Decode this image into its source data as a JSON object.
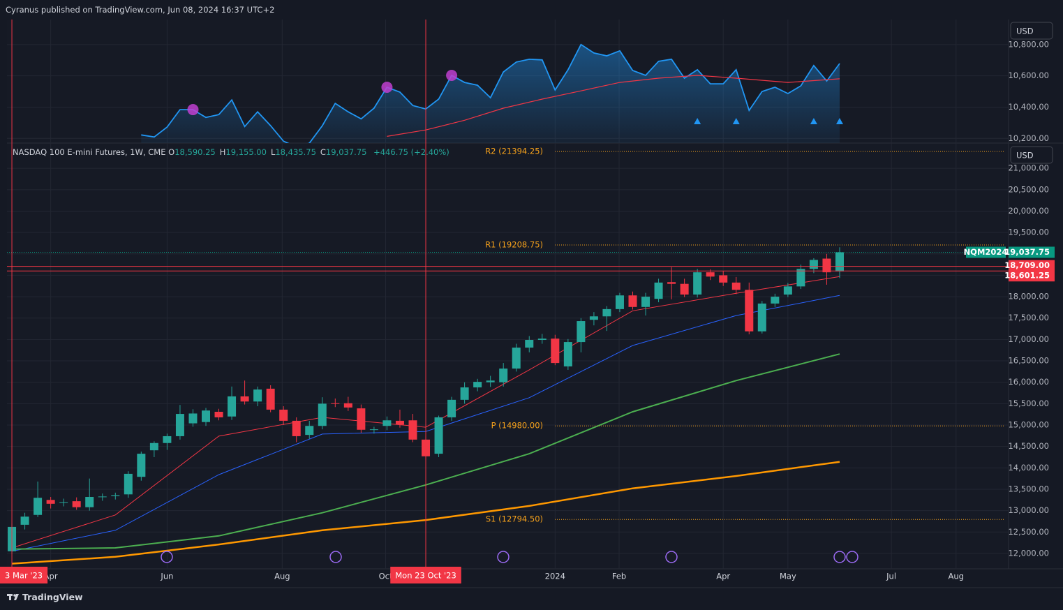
{
  "header": "Cyranus published on TradingView.com, Jun 08, 2024 16:37 UTC+2",
  "footer_brand": "TradingView",
  "chart_data": [
    {
      "type": "oscillator",
      "currency": "USD",
      "xlim": [
        -0.38,
        77.06
      ],
      "ylim": [
        10170,
        10960
      ],
      "yticks": [
        {
          "value": 10200,
          "label": "10,200.00"
        },
        {
          "value": 10400,
          "label": "10,400.00"
        },
        {
          "value": 10600,
          "label": "10,600.00"
        },
        {
          "value": 10800,
          "label": "10,800.00"
        }
      ],
      "series": [
        {
          "color": "#2196f3",
          "x": [
            10,
            11,
            12,
            13,
            14,
            15,
            16,
            17,
            18,
            19,
            20,
            21,
            22,
            23,
            24,
            25,
            26,
            27,
            28,
            29,
            30,
            31,
            32,
            33,
            34,
            35,
            36,
            37,
            38,
            39,
            40,
            41,
            42,
            43,
            44,
            45,
            46,
            47,
            48,
            49,
            50,
            51,
            52,
            53,
            54,
            55,
            56,
            57,
            58,
            59,
            60,
            61,
            62,
            63,
            64
          ],
          "values": [
            10222,
            10209,
            10272,
            10384,
            10384,
            10334,
            10352,
            10446,
            10276,
            10370,
            10281,
            10182,
            10146,
            10169,
            10281,
            10424,
            10370,
            10325,
            10393,
            10527,
            10496,
            10410,
            10388,
            10451,
            10603,
            10558,
            10540,
            10460,
            10625,
            10688,
            10706,
            10702,
            10509,
            10639,
            10800,
            10746,
            10728,
            10760,
            10634,
            10603,
            10693,
            10706,
            10585,
            10639,
            10549,
            10549,
            10639,
            10379,
            10500,
            10527,
            10487,
            10536,
            10666,
            10567,
            10679
          ]
        },
        {
          "color": "#f23645",
          "x": [
            29,
            32,
            35,
            38,
            41,
            44,
            47,
            50,
            53,
            56,
            60,
            64
          ],
          "values": [
            10213,
            10254,
            10316,
            10393,
            10451,
            10504,
            10558,
            10585,
            10603,
            10585,
            10558,
            10581
          ]
        }
      ],
      "markers": {
        "circles": [
          14,
          29,
          34
        ],
        "circle_color": "#c040d0",
        "triangles": [
          53,
          56,
          62,
          64
        ],
        "triangle_color": "#2196f3"
      }
    },
    {
      "type": "candlestick",
      "instrument": "NASDAQ 100 E-mini Futures, 1W, CME",
      "legend": [
        {
          "key": "O",
          "value": "18,590.25"
        },
        {
          "key": "H",
          "value": "19,155.00"
        },
        {
          "key": "L",
          "value": "18,435.75"
        },
        {
          "key": "C",
          "value": "19,037.75"
        }
      ],
      "change": "+446.75 (+2.40%)",
      "currency": "USD",
      "xlim": [
        -0.38,
        77.06
      ],
      "xticks": [
        {
          "value": 3.0,
          "label": "Apr"
        },
        {
          "value": 12.0,
          "label": "Jun"
        },
        {
          "value": 20.9,
          "label": "Aug"
        },
        {
          "value": 28.9,
          "label": "Oct"
        },
        {
          "value": 42.0,
          "label": "2024"
        },
        {
          "value": 46.95,
          "label": "Feb"
        },
        {
          "value": 55.0,
          "label": "Apr"
        },
        {
          "value": 60.0,
          "label": "May"
        },
        {
          "value": 68.0,
          "label": "Jul"
        },
        {
          "value": 73.0,
          "label": "Aug"
        }
      ],
      "ylim": [
        11640,
        21590
      ],
      "yticks": [
        {
          "value": 12000,
          "label": "12,000.00"
        },
        {
          "value": 12500,
          "label": "12,500.00"
        },
        {
          "value": 13000,
          "label": "13,000.00"
        },
        {
          "value": 13500,
          "label": "13,500.00"
        },
        {
          "value": 14000,
          "label": "14,000.00"
        },
        {
          "value": 14500,
          "label": "14,500.00"
        },
        {
          "value": 15000,
          "label": "15,000.00"
        },
        {
          "value": 15500,
          "label": "15,500.00"
        },
        {
          "value": 16000,
          "label": "16,000.00"
        },
        {
          "value": 16500,
          "label": "16,500.00"
        },
        {
          "value": 17000,
          "label": "17,000.00"
        },
        {
          "value": 17500,
          "label": "17,500.00"
        },
        {
          "value": 18000,
          "label": "18,000.00"
        },
        {
          "value": 18500,
          "label": "18,500.00"
        },
        {
          "value": 19000,
          "label": "19,000.00"
        },
        {
          "value": 19500,
          "label": "19,500.00"
        },
        {
          "value": 20000,
          "label": "20,000.00"
        },
        {
          "value": 20500,
          "label": "20,500.00"
        },
        {
          "value": 21000,
          "label": "21,000.00"
        }
      ],
      "colors": {
        "up": "#26a69a",
        "down": "#f23645"
      },
      "open": [
        12050,
        12670,
        12900,
        13250,
        13190,
        13220,
        13080,
        13320,
        13340,
        13380,
        13790,
        14410,
        14580,
        14740,
        15040,
        15070,
        15310,
        15200,
        15670,
        15550,
        15850,
        15360,
        15100,
        14770,
        14980,
        15510,
        15510,
        15390,
        14890,
        14980,
        15100,
        15110,
        14660,
        14330,
        15180,
        15590,
        15880,
        16000,
        16000,
        16320,
        16810,
        16990,
        17020,
        16370,
        16940,
        17460,
        17540,
        17710,
        18030,
        17760,
        17950,
        18340,
        18300,
        18050,
        18570,
        18500,
        18330,
        18160,
        17190,
        17840,
        18050,
        18240,
        18650,
        18890,
        18590.25
      ],
      "high": [
        12700,
        12950,
        13680,
        13320,
        13280,
        13310,
        13750,
        13400,
        13420,
        13920,
        14380,
        14620,
        14800,
        15470,
        15370,
        15400,
        15380,
        15900,
        16040,
        15900,
        15930,
        15440,
        15180,
        15100,
        15650,
        15620,
        15660,
        15480,
        14960,
        15200,
        15360,
        15260,
        14750,
        15220,
        15660,
        16000,
        16080,
        16150,
        16450,
        16900,
        17080,
        17130,
        17110,
        17010,
        17500,
        17640,
        17780,
        18090,
        18120,
        18090,
        18420,
        18690,
        18420,
        18650,
        18640,
        18600,
        18460,
        18330,
        17900,
        18070,
        18320,
        18750,
        18900,
        19000,
        19155
      ],
      "low": [
        11980,
        12560,
        12850,
        13050,
        13100,
        13020,
        13000,
        13230,
        13260,
        13300,
        13700,
        14250,
        14420,
        14660,
        14960,
        14980,
        15110,
        15120,
        15480,
        15440,
        15300,
        15000,
        14600,
        14680,
        14900,
        15420,
        15330,
        14820,
        14800,
        14880,
        14940,
        14600,
        14180,
        14250,
        15100,
        15500,
        15790,
        15890,
        15900,
        16250,
        16700,
        16900,
        16400,
        16290,
        16700,
        17330,
        17200,
        17640,
        17700,
        17560,
        17870,
        17940,
        17990,
        17980,
        18390,
        18250,
        18060,
        17120,
        17140,
        17760,
        17990,
        18180,
        18550,
        18280,
        18435.75
      ],
      "close": [
        12620,
        12860,
        13300,
        13160,
        13200,
        13080,
        13320,
        13330,
        13360,
        13860,
        14330,
        14580,
        14740,
        15260,
        15270,
        15340,
        15180,
        15670,
        15550,
        15830,
        15360,
        15100,
        14740,
        14980,
        15500,
        15500,
        15410,
        14890,
        14900,
        15110,
        15010,
        14660,
        14270,
        15180,
        15590,
        15880,
        16010,
        16040,
        16320,
        16810,
        16990,
        17020,
        16450,
        16940,
        17430,
        17540,
        17710,
        18030,
        17760,
        18000,
        18330,
        18300,
        18050,
        18570,
        18470,
        18330,
        18160,
        17190,
        17840,
        18000,
        18240,
        18650,
        18860,
        18570,
        19037.75
      ],
      "moving_averages": [
        {
          "color": "#f23645",
          "width": 1,
          "x": [
            0,
            8,
            16,
            24,
            32,
            40,
            48,
            56,
            64
          ],
          "values": [
            12130,
            12900,
            14740,
            15180,
            14950,
            16290,
            17670,
            18080,
            18470
          ]
        },
        {
          "color": "#2962ff",
          "width": 1,
          "x": [
            0,
            8,
            16,
            24,
            32,
            40,
            48,
            56,
            64
          ],
          "values": [
            12050,
            12540,
            13840,
            14790,
            14850,
            15640,
            16860,
            17560,
            18030
          ]
        },
        {
          "color": "#4caf50",
          "width": 2,
          "x": [
            0,
            8,
            16,
            24,
            32,
            40,
            48,
            56,
            64
          ],
          "values": [
            12100,
            12130,
            12410,
            12950,
            13600,
            14330,
            15310,
            16040,
            16660
          ]
        },
        {
          "color": "#ff9800",
          "width": 2.5,
          "x": [
            0,
            8,
            16,
            24,
            32,
            40,
            48,
            56,
            64
          ],
          "values": [
            11760,
            11920,
            12210,
            12540,
            12780,
            13110,
            13520,
            13810,
            14140
          ]
        }
      ],
      "levels": [
        {
          "label": "R2 (21394.25)",
          "value": 21394.25
        },
        {
          "label": "R1 (19208.75)",
          "value": 19208.75
        },
        {
          "label": "P (14980.00)",
          "value": 14980
        },
        {
          "label": "S1 (12794.50)",
          "value": 12794.5
        }
      ],
      "level_color": "#f7a21b",
      "price_lines": [
        {
          "label": "18,709.00",
          "value": 18709
        },
        {
          "label": "18,601.25",
          "value": 18601.25
        }
      ],
      "price_line_color": "#f23645",
      "last_price": {
        "symbol": "NQM2024",
        "label": "19,037.75",
        "value": 19037.75,
        "color": "#089981"
      },
      "crosshairs": [
        {
          "x": 0,
          "label": "3 Mar '23"
        },
        {
          "x": 32,
          "label": "Mon 23 Oct '23"
        }
      ],
      "crosshair_color": "#f23645"
    }
  ]
}
